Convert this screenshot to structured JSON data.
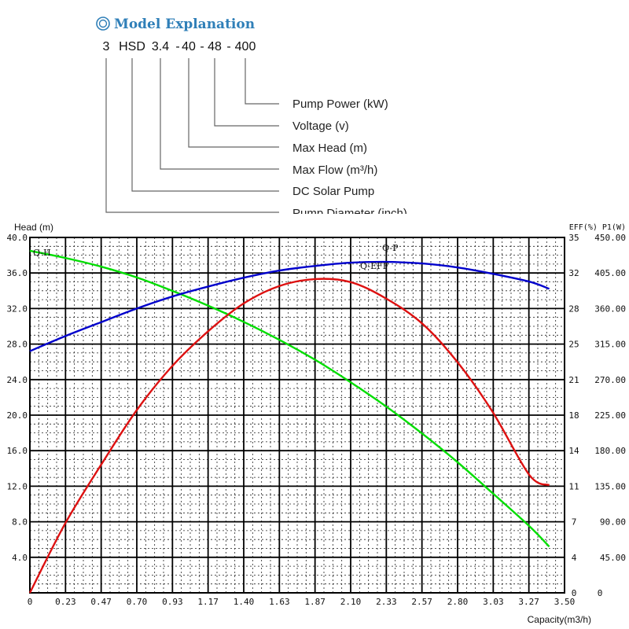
{
  "explanation": {
    "title": "Model Explanation",
    "title_icon": "double-circle-icon",
    "parts": [
      "3",
      "HSD",
      "3.4",
      "40",
      "48",
      "400"
    ],
    "separators": [
      "-",
      "-",
      "-",
      "-"
    ],
    "descriptions": [
      "Pump Power (kW)",
      "Voltage (v)",
      "Max Head (m)",
      "Max Flow (m³/h)",
      "DC Solar Pump",
      "Pump Diameter (inch)"
    ]
  },
  "chart_data": {
    "type": "line",
    "xlabel": "Capacity(m3/h)",
    "ylabel_left": "Head (m)",
    "ylabel_right": "EFF(%) P1(W)",
    "xlim": [
      0,
      3.5
    ],
    "ylim_head": [
      0,
      40
    ],
    "ylim_eff": [
      0,
      35
    ],
    "ylim_power": [
      0,
      450
    ],
    "x_ticks": [
      "0",
      "0.23",
      "0.47",
      "0.70",
      "0.93",
      "1.17",
      "1.40",
      "1.63",
      "1.87",
      "2.10",
      "2.33",
      "2.57",
      "2.80",
      "3.03",
      "3.27",
      "3.50"
    ],
    "y_ticks_head": [
      "4.0",
      "8.0",
      "12.0",
      "16.0",
      "20.0",
      "24.0",
      "28.0",
      "32.0",
      "36.0",
      "40.0"
    ],
    "y_ticks_eff": [
      "0",
      "4",
      "7",
      "11",
      "14",
      "18",
      "21",
      "25",
      "28",
      "32",
      "35"
    ],
    "y_ticks_power": [
      "45.00",
      "90.00",
      "135.00",
      "180.00",
      "225.00",
      "270.00",
      "315.00",
      "360.00",
      "405.00",
      "450.00"
    ],
    "grid": true,
    "series": [
      {
        "name": "Q-H",
        "axis": "head",
        "color": "#00dd00",
        "x": [
          0,
          0.23,
          0.47,
          0.7,
          0.93,
          1.17,
          1.4,
          1.63,
          1.87,
          2.1,
          2.33,
          2.57,
          2.8,
          3.03,
          3.27,
          3.4
        ],
        "y": [
          38.5,
          37.7,
          36.7,
          35.5,
          34.0,
          32.3,
          30.5,
          28.5,
          26.2,
          23.7,
          21.0,
          17.9,
          14.7,
          11.2,
          7.5,
          5.2
        ]
      },
      {
        "name": "Q-P",
        "axis": "power",
        "color": "#0000cc",
        "x": [
          0,
          0.23,
          0.47,
          0.7,
          0.93,
          1.17,
          1.4,
          1.63,
          1.87,
          2.1,
          2.33,
          2.57,
          2.8,
          3.03,
          3.27,
          3.4
        ],
        "y": [
          306,
          325,
          343,
          360,
          375,
          388,
          399,
          408,
          414,
          418,
          419,
          417,
          412,
          404,
          394,
          385
        ]
      },
      {
        "name": "Q-EFF",
        "axis": "eff",
        "color": "#dd1111",
        "x": [
          0,
          0.23,
          0.47,
          0.7,
          0.93,
          1.17,
          1.4,
          1.63,
          1.87,
          2.1,
          2.33,
          2.57,
          2.8,
          3.03,
          3.27,
          3.4
        ],
        "y": [
          0,
          6.8,
          12.7,
          18.0,
          22.3,
          25.8,
          28.5,
          30.2,
          30.9,
          30.6,
          29.0,
          26.5,
          22.7,
          17.8,
          11.6,
          10.6
        ]
      }
    ],
    "curve_labels": [
      "Q-H",
      "Q-P",
      "Q-EFF"
    ]
  }
}
